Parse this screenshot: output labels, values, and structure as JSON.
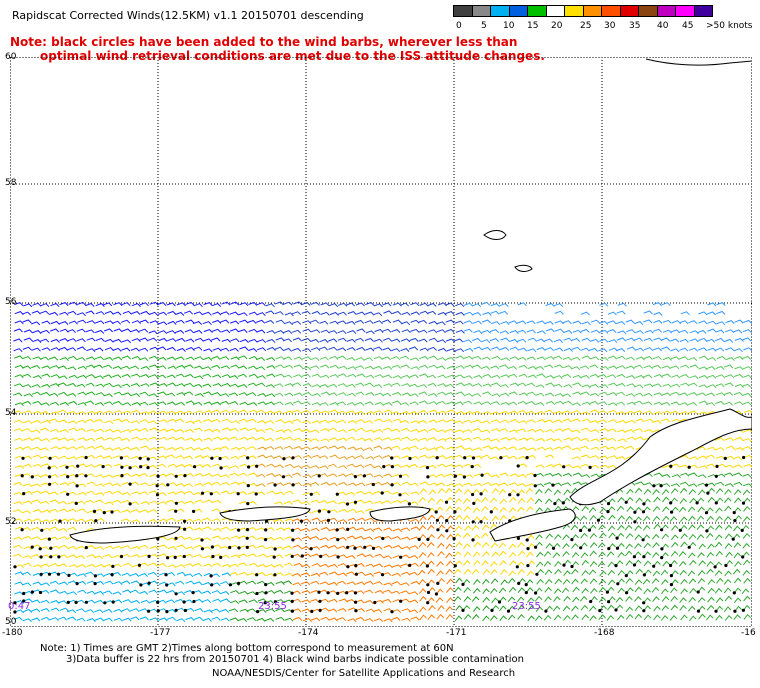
{
  "title": "Rapidscat Corrected Winds(12.5KM) v1.1 20150701 descending",
  "note_red": [
    "Note: black circles have been added to the wind barbs, wherever less than",
    "optimal wind retrieval conditions are met due to the ISS attitude changes."
  ],
  "colorbar": {
    "colors": [
      "#404040",
      "#888888",
      "#00b0f0",
      "#0060e0",
      "#00c000",
      "#ffffff",
      "#ffe000",
      "#ff9000",
      "#ff5000",
      "#e00000",
      "#8b4513",
      "#c000c0",
      "#ff00ff",
      "#4000a0"
    ],
    "labels": [
      "0",
      "5",
      "10",
      "15",
      "20",
      "25",
      "30",
      "35",
      "40",
      "45",
      ">50 knots"
    ]
  },
  "lat_labels": [
    "60",
    "58",
    "56",
    "54",
    "52",
    "50"
  ],
  "lon_labels": [
    "-180",
    "-177",
    "-174",
    "-171",
    "-168",
    "-16"
  ],
  "time_labels": [
    "0:47",
    "23:55",
    "23:55"
  ],
  "footer": [
    "Note: 1) Times are GMT 2)Times along bottom correspond to measurement at 60N",
    "3)Data buffer is 22 hrs from 20150701 4) Black wind barbs indicate possible contamination",
    "NOAA/NESDIS/Center for Satellite Applications and Research"
  ]
}
